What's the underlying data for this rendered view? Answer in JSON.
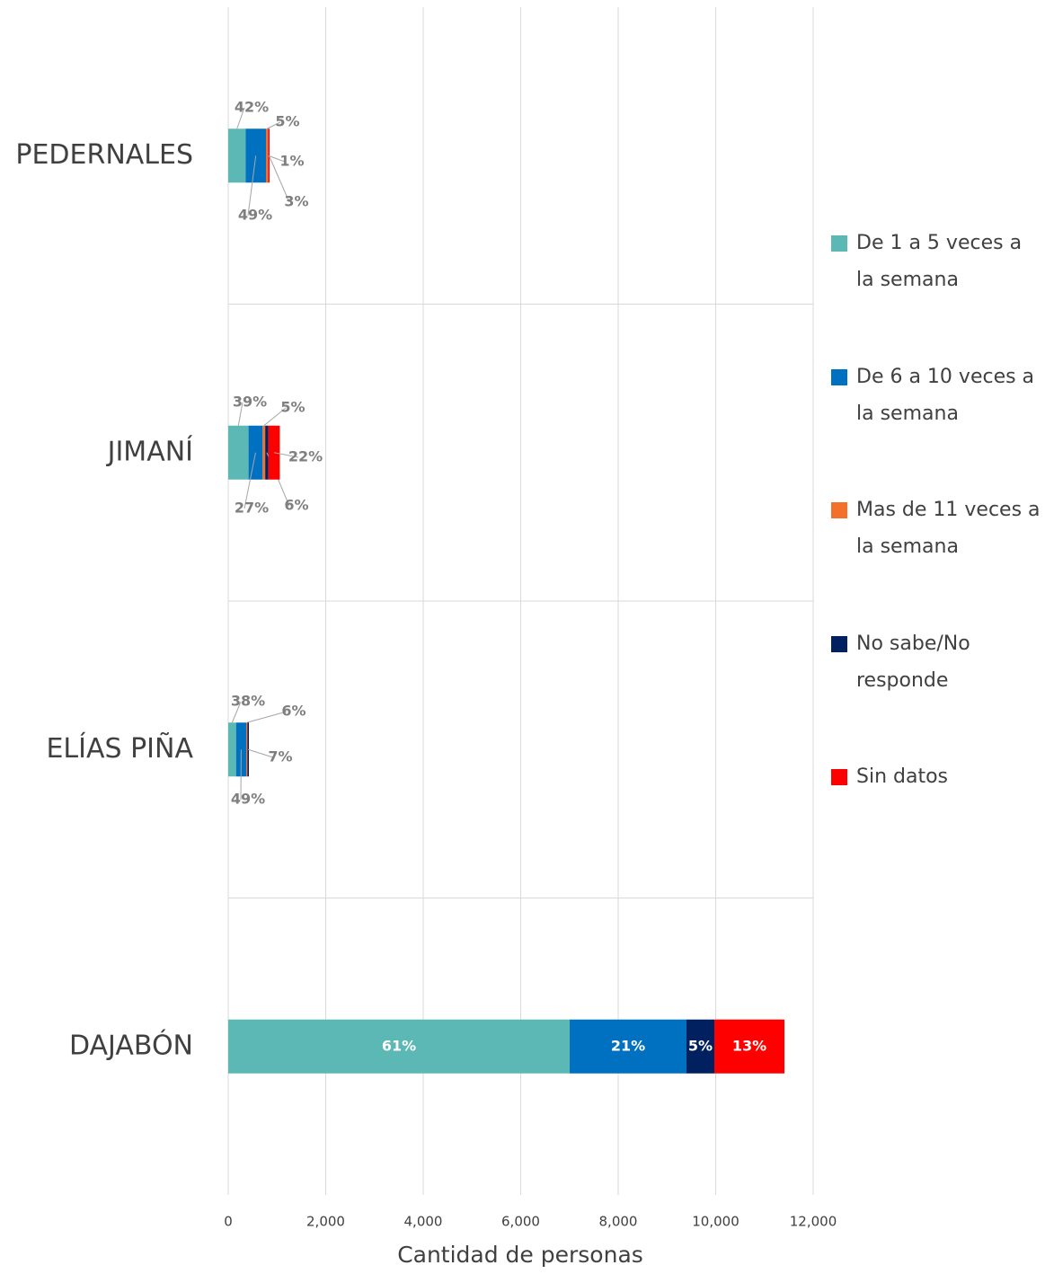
{
  "chart_data": {
    "type": "stacked_barh",
    "categories": [
      "PEDERNALES",
      "JIMANÍ",
      "ELÍAS PIÑA",
      "DAJABÓN"
    ],
    "series": [
      {
        "name": "De 1 a 5 veces a la semana",
        "color": "#5bb8b4",
        "values": [
          357,
          417,
          161,
          7005
        ],
        "value_labels": [
          "42%",
          "39%",
          "38%",
          "61%"
        ]
      },
      {
        "name": "De 6 a 10 veces a la semana",
        "color": "#0070c0",
        "values": [
          417,
          289,
          208,
          2396
        ],
        "value_labels": [
          "49%",
          "27%",
          "49%",
          "21%"
        ]
      },
      {
        "name": "Mas de 11 veces a la semana",
        "color": "#f4702a",
        "values": [
          43,
          53,
          25,
          null
        ],
        "value_labels": [
          "5%",
          "5%",
          "6%",
          null
        ]
      },
      {
        "name": "No sabe/No responde",
        "color": "#002060",
        "values": [
          8,
          64,
          30,
          571
        ],
        "value_labels": [
          "1%",
          "6%",
          "7%",
          "5%"
        ]
      },
      {
        "name": "Sin datos",
        "color": "#ff0000",
        "values": [
          25,
          235,
          null,
          1438
        ],
        "value_labels": [
          "3%",
          "22%",
          null,
          "13%"
        ]
      }
    ],
    "xlabel": "Cantidad de personas",
    "xlim": [
      0,
      12000
    ],
    "xticks": [
      0,
      {
        "value": 2000,
        "label": "2,000"
      },
      {
        "value": 4000,
        "label": "4,000"
      },
      {
        "value": 6000,
        "label": "6,000"
      },
      {
        "value": 8000,
        "label": "8,000"
      },
      {
        "value": 10000,
        "label": "10,000"
      },
      {
        "value": 12000,
        "label": "12,000"
      }
    ],
    "grid": true,
    "legend": "right"
  }
}
